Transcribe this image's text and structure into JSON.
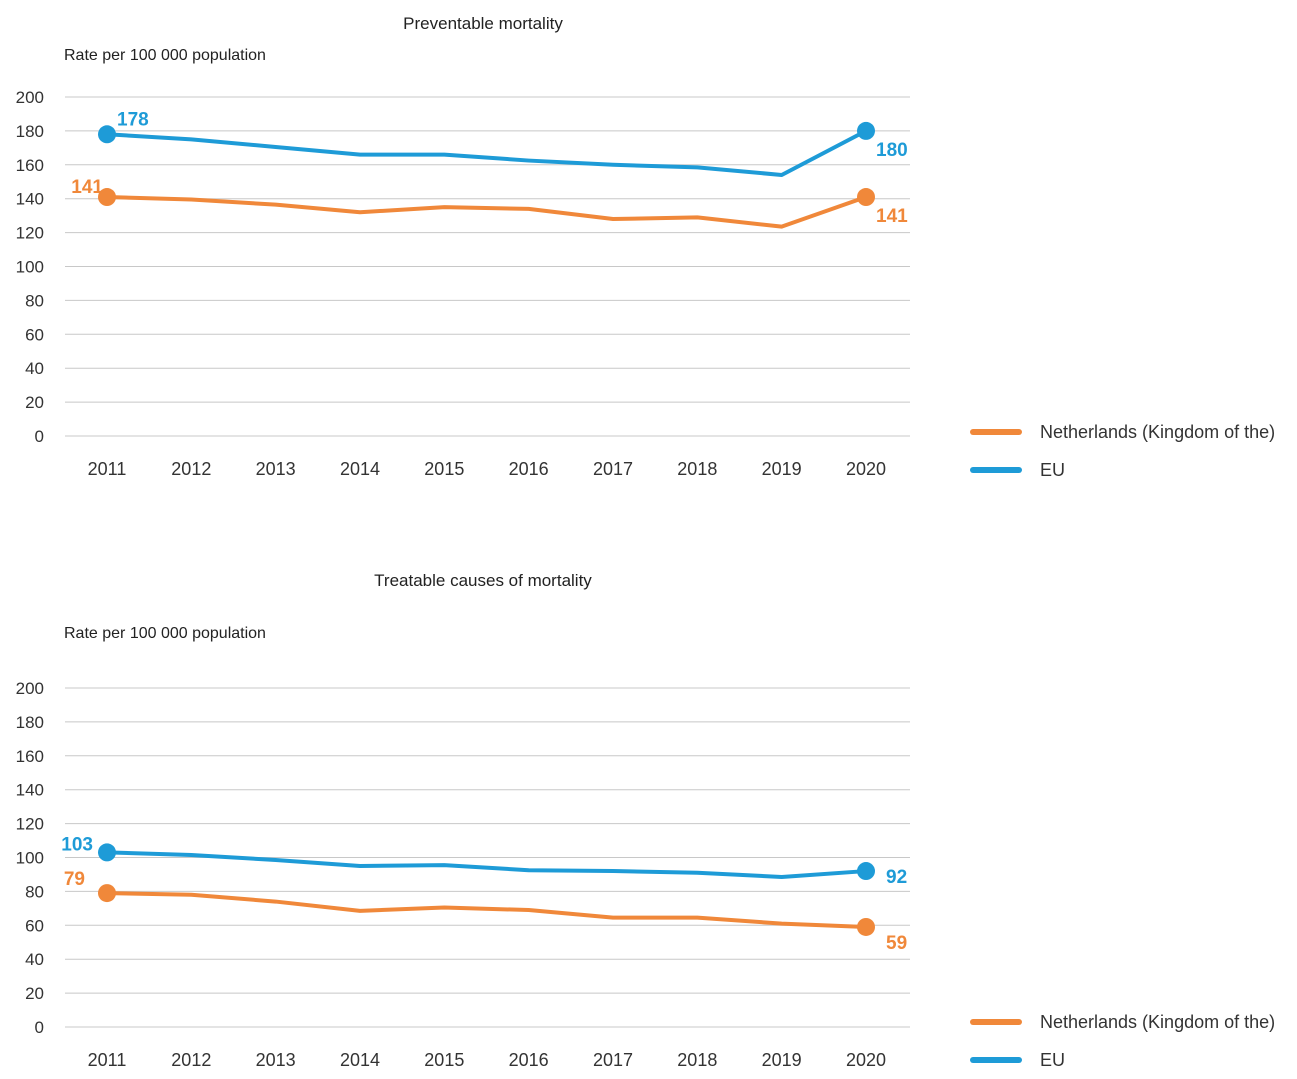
{
  "chart_data": [
    {
      "type": "line",
      "title": "Preventable mortality",
      "ylabel": "Rate per 100 000 population",
      "xlabel": "",
      "x": [
        "2011",
        "2012",
        "2013",
        "2014",
        "2015",
        "2016",
        "2017",
        "2018",
        "2019",
        "2020"
      ],
      "ylim": [
        0,
        200
      ],
      "yticks": [
        0,
        20,
        40,
        60,
        80,
        100,
        120,
        140,
        160,
        180,
        200
      ],
      "grid": true,
      "legend_position": "right",
      "series": [
        {
          "name": "Netherlands (Kingdom of the)",
          "color": "#F0883A",
          "values": [
            141,
            139.5,
            136.5,
            132,
            135,
            134,
            128,
            129,
            123.5,
            141
          ],
          "labels": {
            "start": "141",
            "end": "141"
          }
        },
        {
          "name": "EU",
          "color": "#1E9BD7",
          "values": [
            178,
            175,
            170.5,
            166,
            166,
            162.5,
            160,
            158.5,
            154,
            180
          ],
          "labels": {
            "start": "178",
            "end": "180"
          }
        }
      ]
    },
    {
      "type": "line",
      "title": "Treatable causes of mortality",
      "ylabel": "Rate per 100 000 population",
      "xlabel": "",
      "x": [
        "2011",
        "2012",
        "2013",
        "2014",
        "2015",
        "2016",
        "2017",
        "2018",
        "2019",
        "2020"
      ],
      "ylim": [
        0,
        200
      ],
      "yticks": [
        0,
        20,
        40,
        60,
        80,
        100,
        120,
        140,
        160,
        180,
        200
      ],
      "grid": true,
      "legend_position": "bottom-right",
      "series": [
        {
          "name": "Netherlands (Kingdom of the)",
          "color": "#F0883A",
          "values": [
            79,
            78,
            74,
            68.5,
            70.5,
            69,
            64.5,
            64.5,
            61,
            59
          ],
          "labels": {
            "start": "79",
            "end": "59"
          }
        },
        {
          "name": "EU",
          "color": "#1E9BD7",
          "values": [
            103,
            101.5,
            98.5,
            95,
            95.5,
            92.5,
            92,
            91,
            88.5,
            92
          ],
          "labels": {
            "start": "103",
            "end": "92"
          }
        }
      ]
    }
  ]
}
